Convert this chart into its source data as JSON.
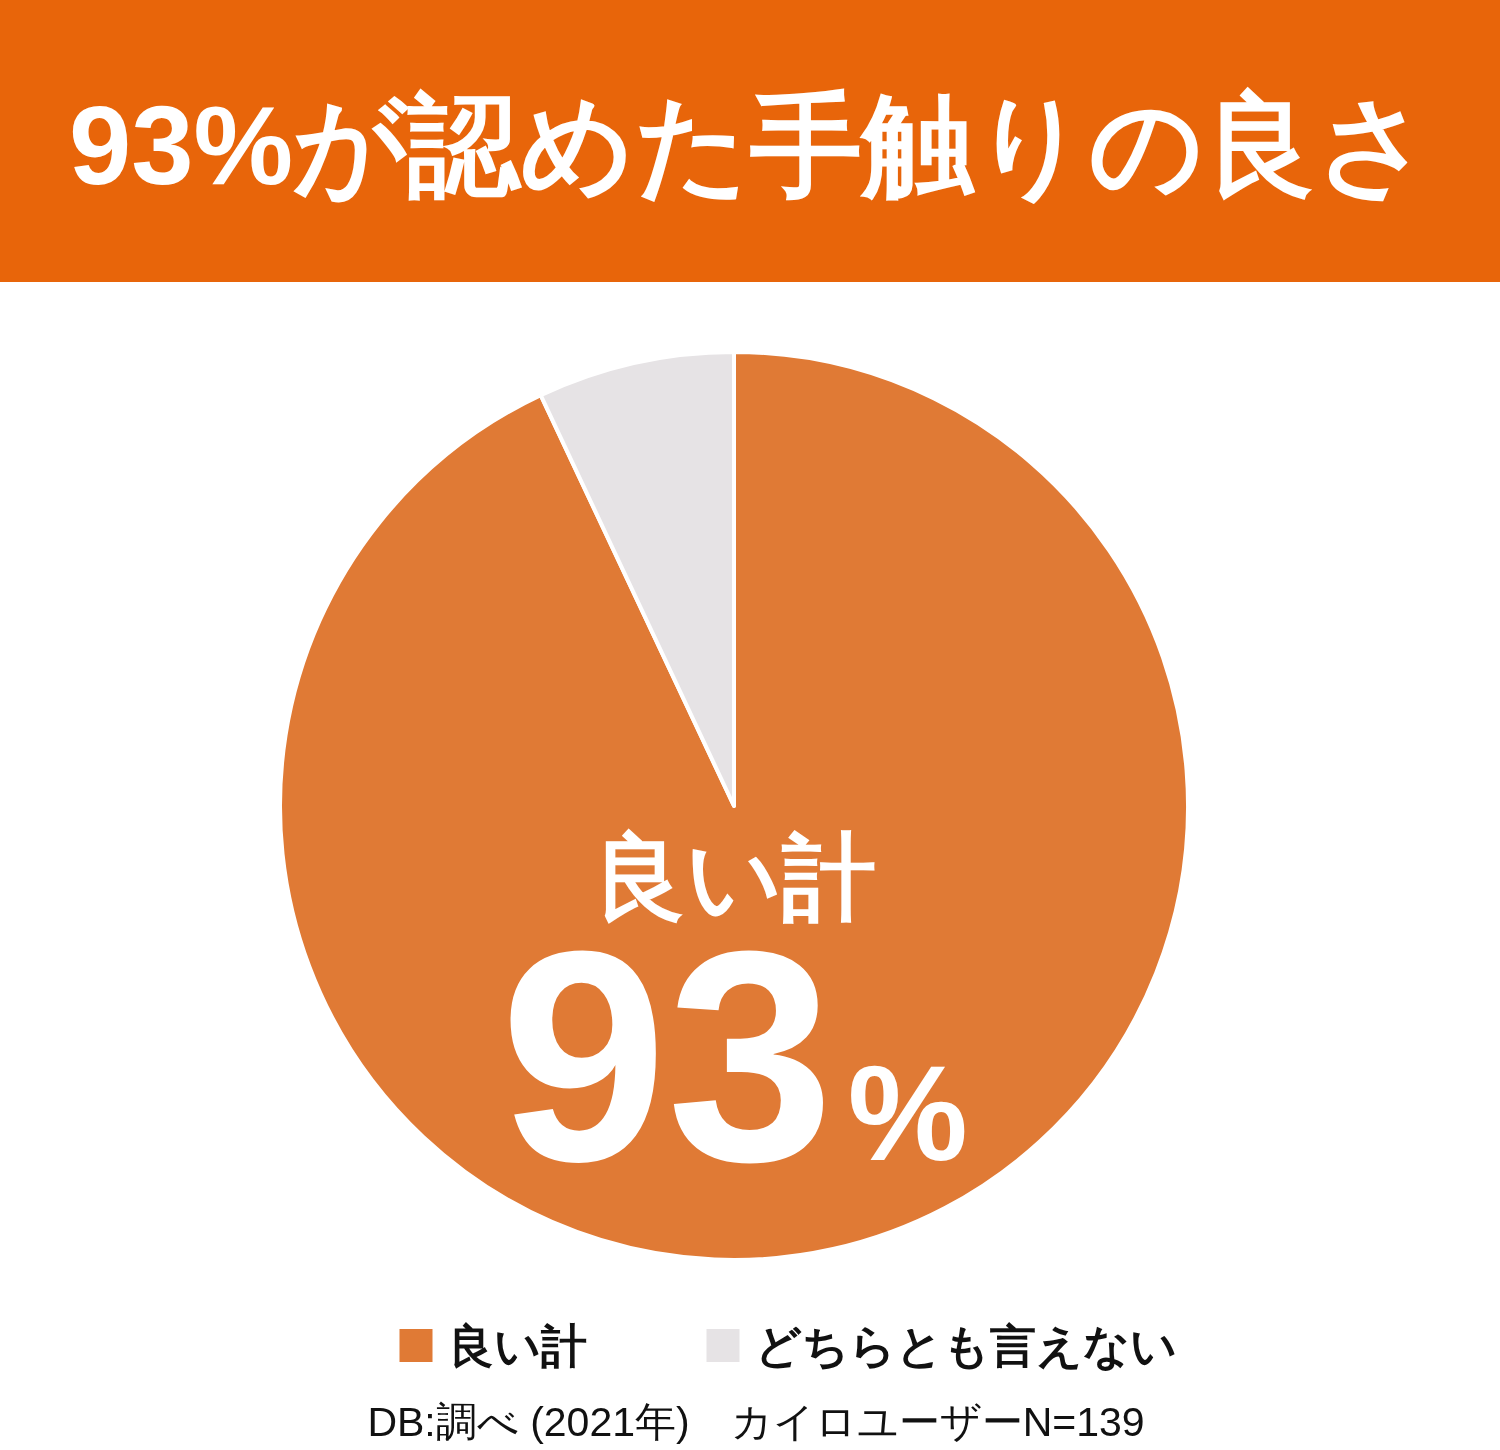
{
  "chart_data": {
    "type": "pie",
    "title": "93%が認めた手触りの良さ",
    "categories": [
      "良い計",
      "どちらとも言えない"
    ],
    "values": [
      93,
      7
    ],
    "colors": [
      "#e07a35",
      "#e6e3e5"
    ],
    "value_labels": [
      "良い計\n93%",
      null
    ],
    "legend": "bottom",
    "annotations": [
      "DB:調べ (2021年)　カイロユーザーN=139"
    ]
  }
}
